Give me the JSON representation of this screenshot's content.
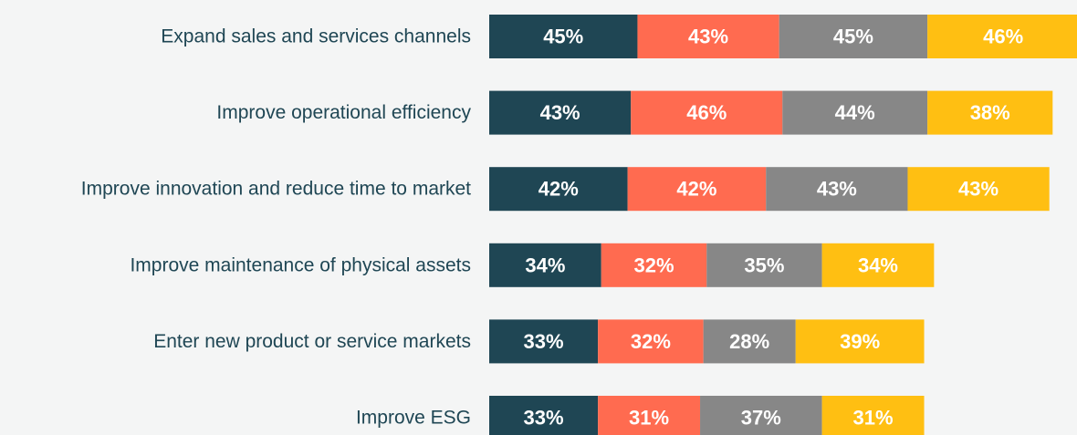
{
  "chart_data": {
    "type": "stacked-bar-horizontal",
    "categories": [
      "Expand sales and services channels",
      "Improve operational efficiency",
      "Improve innovation and reduce time to market",
      "Improve maintenance of physical assets",
      "Enter new product or service markets",
      "Improve ESG"
    ],
    "series": [
      {
        "color": "#1f4654",
        "values": [
          45,
          43,
          42,
          34,
          33,
          33
        ],
        "value_labels": [
          "45%",
          "43%",
          "42%",
          "34%",
          "33%",
          "33%"
        ]
      },
      {
        "color": "#ff6b50",
        "values": [
          43,
          46,
          42,
          32,
          32,
          31
        ],
        "value_labels": [
          "43%",
          "46%",
          "42%",
          "32%",
          "32%",
          "31%"
        ]
      },
      {
        "color": "#878787",
        "values": [
          45,
          44,
          43,
          35,
          28,
          37
        ],
        "value_labels": [
          "45%",
          "44%",
          "43%",
          "35%",
          "28%",
          "37%"
        ]
      },
      {
        "color": "#ffbf12",
        "values": [
          46,
          38,
          43,
          34,
          39,
          31
        ],
        "value_labels": [
          "46%",
          "38%",
          "43%",
          "34%",
          "39%",
          "31%"
        ]
      }
    ]
  }
}
